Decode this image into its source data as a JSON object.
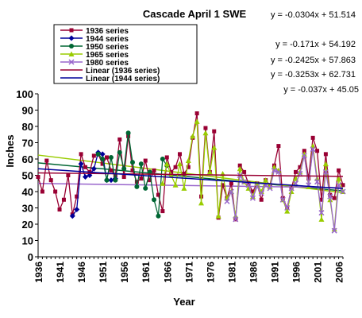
{
  "chart_data": {
    "type": "line",
    "title": "Cascade April 1 SWE",
    "xlabel": "Year",
    "ylabel": "Inches",
    "xlim": [
      1936,
      2007
    ],
    "ylim": [
      0,
      100
    ],
    "yticks": [
      0,
      10,
      20,
      30,
      40,
      50,
      60,
      70,
      80,
      90,
      100
    ],
    "xticks": [
      1936,
      1941,
      1946,
      1951,
      1956,
      1961,
      1966,
      1971,
      1976,
      1981,
      1986,
      1991,
      1996,
      2001,
      2006
    ],
    "grid": false,
    "legend_position": "top-left",
    "series": [
      {
        "name": "1936 series",
        "color": "#990033",
        "marker": "square",
        "x": [
          1936,
          1937,
          1938,
          1939,
          1940,
          1941,
          1942,
          1943,
          1944,
          1945,
          1946,
          1947,
          1948,
          1949,
          1950,
          1951,
          1952,
          1953,
          1954,
          1955,
          1956,
          1957,
          1958,
          1959,
          1960,
          1961,
          1962,
          1963,
          1964,
          1965,
          1966,
          1967,
          1968,
          1969,
          1970,
          1971,
          1972,
          1973,
          1974,
          1975,
          1976,
          1977,
          1978,
          1979,
          1980,
          1981,
          1982,
          1983,
          1984,
          1985,
          1986,
          1987,
          1988,
          1989,
          1990,
          1991,
          1992,
          1993,
          1994,
          1995,
          1996,
          1997,
          1998,
          1999,
          2000,
          2001,
          2002,
          2003,
          2004,
          2005,
          2006,
          2007
        ],
        "y": [
          49,
          40,
          59,
          47,
          40,
          29,
          35,
          50,
          26,
          37,
          63,
          55,
          52,
          62,
          63,
          57,
          61,
          53,
          50,
          72,
          49,
          74,
          53,
          46,
          48,
          59,
          47,
          53,
          38,
          28,
          61,
          52,
          55,
          63,
          51,
          55,
          73,
          88,
          37,
          79,
          52,
          77,
          24,
          44,
          36,
          45,
          23,
          56,
          52,
          45,
          40,
          45,
          35,
          47,
          44,
          56,
          68,
          36,
          30,
          42,
          52,
          55,
          65,
          48,
          73,
          65,
          35,
          63,
          38,
          36,
          53,
          44
        ]
      },
      {
        "name": "1944 series",
        "color": "#000099",
        "marker": "diamond",
        "x": [
          1944,
          1945,
          1946,
          1947,
          1948,
          1949,
          1950,
          1951,
          1952,
          1953,
          1954
        ],
        "y": [
          25,
          29,
          57,
          49,
          50,
          54,
          64,
          63,
          47,
          47,
          48
        ]
      },
      {
        "name": "1950 series",
        "color": "#006633",
        "marker": "circle",
        "x": [
          1950,
          1951,
          1952,
          1953,
          1954,
          1955,
          1956,
          1957,
          1958,
          1959,
          1960,
          1961,
          1962,
          1963,
          1964,
          1965,
          1966
        ],
        "y": [
          63,
          60,
          47,
          61,
          47,
          64,
          54,
          76,
          58,
          43,
          57,
          42,
          52,
          35,
          25,
          60,
          56
        ]
      },
      {
        "name": "1965 series",
        "color": "#99cc00",
        "marker": "triangle",
        "x": [
          1965,
          1966,
          1967,
          1968,
          1969,
          1970,
          1971,
          1972,
          1973,
          1974,
          1975,
          1976,
          1977,
          1978,
          1979,
          1980,
          1981,
          1982,
          1983,
          1984,
          1985,
          1986,
          1987,
          1988,
          1989,
          1990,
          1991,
          1992,
          1993,
          1994,
          1995,
          1996,
          1997,
          1998,
          1999,
          2000,
          2001,
          2002,
          2003,
          2004,
          2005,
          2006,
          2007
        ],
        "y": [
          45,
          57,
          50,
          44,
          57,
          42,
          59,
          74,
          83,
          33,
          76,
          52,
          67,
          25,
          51,
          36,
          40,
          25,
          54,
          46,
          42,
          37,
          45,
          40,
          47,
          43,
          55,
          53,
          35,
          28,
          40,
          48,
          52,
          63,
          43,
          68,
          48,
          23,
          57,
          35,
          17,
          48,
          40
        ]
      },
      {
        "name": "1980 series",
        "color": "#9966cc",
        "marker": "cross",
        "x": [
          1980,
          1981,
          1982,
          1983,
          1984,
          1985,
          1986,
          1987,
          1988,
          1989,
          1990,
          1991,
          1992,
          1993,
          1994,
          1995,
          1996,
          1997,
          1998,
          1999,
          2000,
          2001,
          2002,
          2003,
          2004,
          2005,
          2006,
          2007
        ],
        "y": [
          34,
          40,
          23,
          50,
          46,
          44,
          36,
          43,
          39,
          44,
          42,
          53,
          52,
          35,
          30,
          42,
          45,
          51,
          62,
          44,
          66,
          46,
          27,
          52,
          37,
          16,
          44,
          40
        ]
      },
      {
        "name": "Linear (1936 series)",
        "color": "#990033",
        "marker": "none",
        "x": [
          1936,
          2007
        ],
        "y": [
          51.48,
          49.32
        ]
      },
      {
        "name": "Linear (1944 series)",
        "color": "#000099",
        "marker": "none",
        "x": [
          1936,
          2007
        ],
        "y": [
          54.02,
          41.88
        ]
      }
    ],
    "trendlines": [
      {
        "color": "#006633",
        "x": [
          1936,
          2007
        ],
        "y": [
          57.62,
          40.4
        ]
      },
      {
        "color": "#99cc00",
        "x": [
          1936,
          2007
        ],
        "y": [
          62.41,
          39.31
        ]
      },
      {
        "color": "#9966cc",
        "x": [
          1936,
          2007
        ],
        "y": [
          45.01,
          42.39
        ]
      }
    ],
    "equations": [
      "y = -0.0304x + 51.514",
      "y = -0.171x + 54.192",
      "y = -0.2425x + 57.863",
      "y = -0.3253x + 62.731",
      "y = -0.037x + 45.05"
    ]
  }
}
